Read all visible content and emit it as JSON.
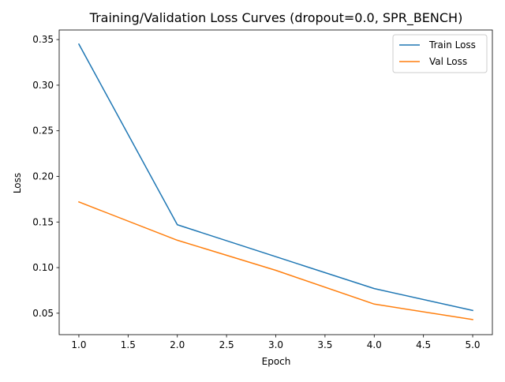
{
  "chart_data": {
    "type": "line",
    "title": "Training/Validation Loss Curves (dropout=0.0, SPR_BENCH)",
    "xlabel": "Epoch",
    "ylabel": "Loss",
    "xlim": [
      0.8,
      5.2
    ],
    "ylim": [
      0.0265,
      0.3605
    ],
    "x_ticks": [
      1.0,
      1.5,
      2.0,
      2.5,
      3.0,
      3.5,
      4.0,
      4.5,
      5.0
    ],
    "x_tick_labels": [
      "1.0",
      "1.5",
      "2.0",
      "2.5",
      "3.0",
      "3.5",
      "4.0",
      "4.5",
      "5.0"
    ],
    "y_ticks": [
      0.05,
      0.1,
      0.15,
      0.2,
      0.25,
      0.3,
      0.35
    ],
    "y_tick_labels": [
      "0.05",
      "0.10",
      "0.15",
      "0.20",
      "0.25",
      "0.30",
      "0.35"
    ],
    "grid": false,
    "legend_position": "top-right",
    "x": [
      1,
      2,
      3,
      4,
      5
    ],
    "series": [
      {
        "name": "Train Loss",
        "color": "#1f77b4",
        "values": [
          0.345,
          0.147,
          0.112,
          0.077,
          0.053
        ]
      },
      {
        "name": "Val Loss",
        "color": "#ff7f0e",
        "values": [
          0.172,
          0.13,
          0.097,
          0.06,
          0.043
        ]
      }
    ]
  }
}
